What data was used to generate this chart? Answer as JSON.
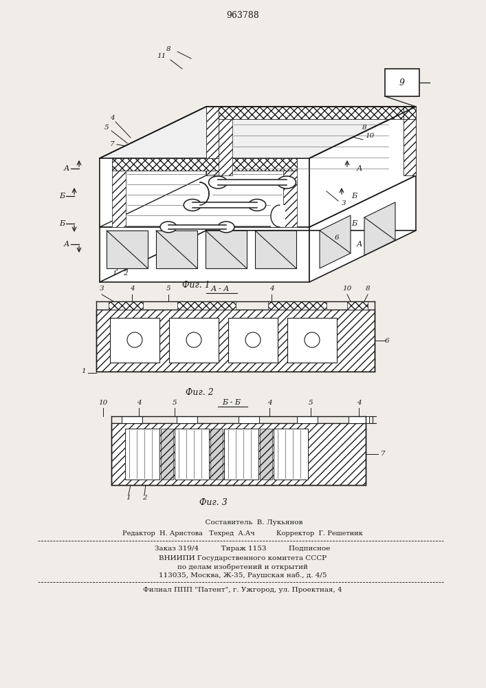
{
  "patent_number": "963788",
  "bg_color": "#f0ede8",
  "line_color": "#1a1a1a",
  "footer_lines": [
    "          Составитель  В. Лукьянов",
    "Редактор  Н. Аристова   Техред  А.Ач          Корректор  Г. Решетник",
    "Заказ 319/4          Тираж 1153          Подписное",
    "ВНИИПИ Государственного комитета СССР",
    "по делам изобретений и открытий",
    "113035, Москва, Ж-35, Раушская наб., д. 4/5",
    "Филиал ППП \"Патент\", г. Ужгород, ул. Проектная, 4"
  ]
}
